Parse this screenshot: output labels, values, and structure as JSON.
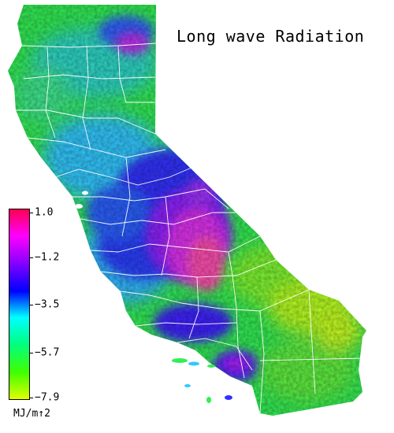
{
  "title": "Long wave Radiation",
  "legend": {
    "units": "MJ/m↑2",
    "ticks": [
      "1.0",
      "−1.2",
      "−3.5",
      "−5.7",
      "−7.9"
    ],
    "range": [
      -7.9,
      1.0
    ],
    "colors": [
      "#ff0050",
      "#ff00ff",
      "#8000ff",
      "#0000ff",
      "#00ffff",
      "#00ff80",
      "#40ff00",
      "#e0ff00"
    ]
  },
  "map": {
    "region": "California",
    "colors": {
      "ocean": "#ffffff",
      "county_border": "#ffffff",
      "green": "#33ee55",
      "cyan": "#30c8ff",
      "blue": "#3030ff",
      "purple": "#9020ff",
      "magenta": "#ff30e0",
      "pink": "#ff50b0",
      "yellowgreen": "#a0ff20"
    }
  }
}
